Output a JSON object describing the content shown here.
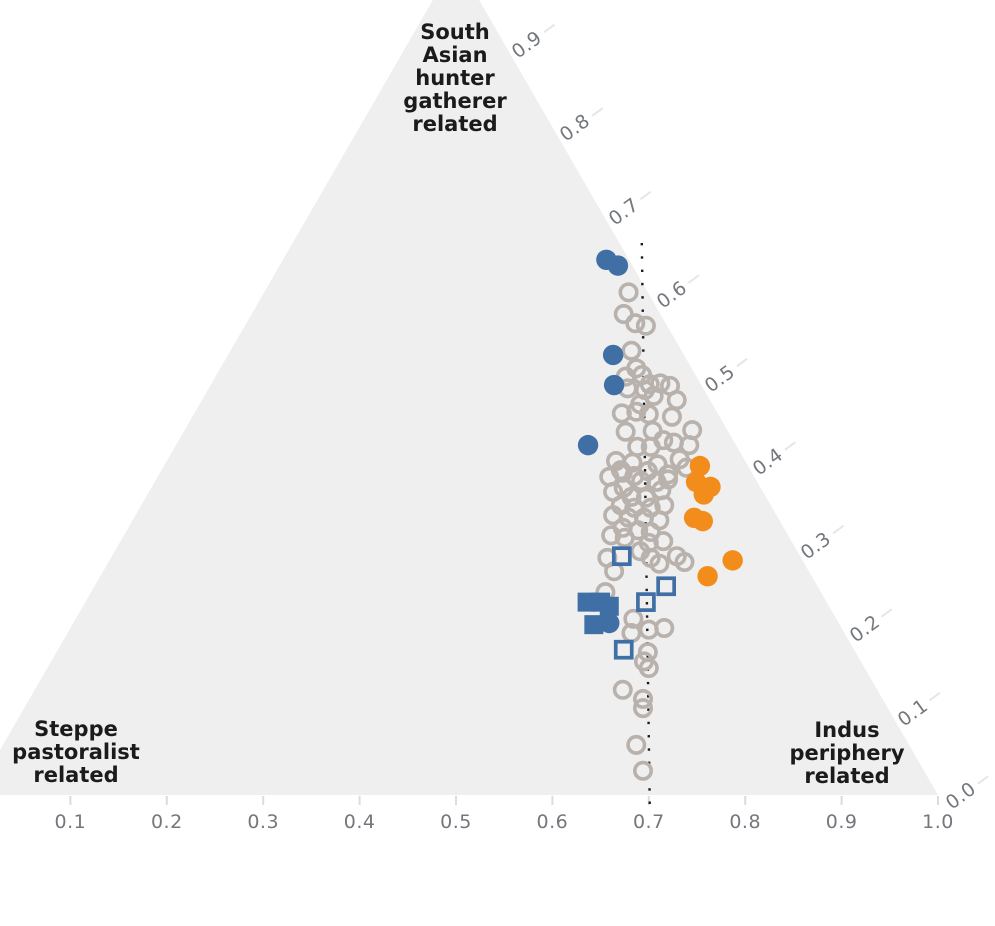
{
  "figure": {
    "background": "#ffffff",
    "triangle_fill": "#efefef",
    "corner_labels": {
      "top": "South\nAsian\nhunter\ngatherer\nrelated",
      "bottom_left": "Steppe\npastoralist\nrelated",
      "bottom_right": "Indus\nperiphery\nrelated",
      "color": "#1b1b1b"
    },
    "axis": {
      "bottom_tick_labels": [
        "0.1",
        "0.2",
        "0.3",
        "0.4",
        "0.5",
        "0.6",
        "0.7",
        "0.8",
        "0.9",
        "1.0"
      ],
      "right_tick_labels": [
        "0.9",
        "0.8",
        "0.7",
        "0.6",
        "0.5",
        "0.4",
        "0.3",
        "0.2",
        "0.1",
        "0.0"
      ],
      "tick_label_color": "#74777c",
      "tick_mark_color": "#dedcda"
    }
  },
  "chart_data": {
    "type": "scatter",
    "subtype": "ternary",
    "title": "",
    "axes": {
      "top_corner_label": "South Asian hunter gatherer related",
      "bottom_left_corner_label": "Steppe pastoralist related",
      "bottom_right_corner_label": "Indus periphery related",
      "bottom_axis_ticks": [
        0.1,
        0.2,
        0.3,
        0.4,
        0.5,
        0.6,
        0.7,
        0.8,
        0.9,
        1.0
      ],
      "right_axis_ticks": [
        0.9,
        0.8,
        0.7,
        0.6,
        0.5,
        0.4,
        0.3,
        0.2,
        0.1,
        0.0
      ],
      "grid": false,
      "legend": "none"
    },
    "reference_line": {
      "axis": "bottom",
      "value": 0.7,
      "style": "dotted",
      "color": "#1a1a1a"
    },
    "point_format": "[bottom_axis_value, right_axis_value]",
    "series": [
      {
        "name": "gray-open-circles",
        "marker": "circle-open",
        "color": "#b8b1ac",
        "points": [
          [
            0.679,
            0.602
          ],
          [
            0.674,
            0.576
          ],
          [
            0.686,
            0.565
          ],
          [
            0.697,
            0.562
          ],
          [
            0.682,
            0.532
          ],
          [
            0.687,
            0.511
          ],
          [
            0.676,
            0.501
          ],
          [
            0.693,
            0.503
          ],
          [
            0.701,
            0.492
          ],
          [
            0.712,
            0.493
          ],
          [
            0.722,
            0.49
          ],
          [
            0.678,
            0.487
          ],
          [
            0.696,
            0.485
          ],
          [
            0.705,
            0.478
          ],
          [
            0.729,
            0.473
          ],
          [
            0.691,
            0.468
          ],
          [
            0.672,
            0.457
          ],
          [
            0.687,
            0.459
          ],
          [
            0.7,
            0.456
          ],
          [
            0.724,
            0.453
          ],
          [
            0.745,
            0.437
          ],
          [
            0.676,
            0.435
          ],
          [
            0.704,
            0.436
          ],
          [
            0.715,
            0.425
          ],
          [
            0.742,
            0.419
          ],
          [
            0.688,
            0.417
          ],
          [
            0.702,
            0.417
          ],
          [
            0.726,
            0.422
          ],
          [
            0.666,
            0.4
          ],
          [
            0.683,
            0.398
          ],
          [
            0.709,
            0.396
          ],
          [
            0.732,
            0.402
          ],
          [
            0.739,
            0.392
          ],
          [
            0.671,
            0.389
          ],
          [
            0.72,
            0.384
          ],
          [
            0.659,
            0.381
          ],
          [
            0.673,
            0.386
          ],
          [
            0.685,
            0.382
          ],
          [
            0.699,
            0.388
          ],
          [
            0.692,
            0.376
          ],
          [
            0.708,
            0.375
          ],
          [
            0.72,
            0.378
          ],
          [
            0.713,
            0.365
          ],
          [
            0.674,
            0.368
          ],
          [
            0.663,
            0.363
          ],
          [
            0.682,
            0.357
          ],
          [
            0.697,
            0.356
          ],
          [
            0.671,
            0.347
          ],
          [
            0.685,
            0.344
          ],
          [
            0.702,
            0.344
          ],
          [
            0.716,
            0.347
          ],
          [
            0.663,
            0.335
          ],
          [
            0.679,
            0.332
          ],
          [
            0.695,
            0.332
          ],
          [
            0.711,
            0.329
          ],
          [
            0.673,
            0.32
          ],
          [
            0.689,
            0.317
          ],
          [
            0.702,
            0.315
          ],
          [
            0.661,
            0.311
          ],
          [
            0.675,
            0.308
          ],
          [
            0.7,
            0.302
          ],
          [
            0.715,
            0.304
          ],
          [
            0.691,
            0.292
          ],
          [
            0.702,
            0.284
          ],
          [
            0.729,
            0.286
          ],
          [
            0.737,
            0.279
          ],
          [
            0.711,
            0.277
          ],
          [
            0.657,
            0.284
          ],
          [
            0.664,
            0.268
          ],
          [
            0.655,
            0.243
          ],
          [
            0.684,
            0.211
          ],
          [
            0.7,
            0.198
          ],
          [
            0.716,
            0.2
          ],
          [
            0.682,
            0.194
          ],
          [
            0.699,
            0.171
          ],
          [
            0.695,
            0.16
          ],
          [
            0.7,
            0.152
          ],
          [
            0.673,
            0.126
          ],
          [
            0.694,
            0.115
          ],
          [
            0.694,
            0.104
          ],
          [
            0.687,
            0.06
          ],
          [
            0.694,
            0.029
          ]
        ]
      },
      {
        "name": "blue-filled-circles",
        "marker": "circle",
        "color": "#3f6fa5",
        "points": [
          [
            0.656,
            0.641
          ],
          [
            0.668,
            0.634
          ],
          [
            0.663,
            0.527
          ],
          [
            0.664,
            0.491
          ],
          [
            0.637,
            0.419
          ],
          [
            0.659,
            0.206
          ]
        ]
      },
      {
        "name": "orange-filled-circles",
        "marker": "circle",
        "color": "#f28d1c",
        "points": [
          [
            0.753,
            0.394
          ],
          [
            0.749,
            0.375
          ],
          [
            0.764,
            0.369
          ],
          [
            0.757,
            0.36
          ],
          [
            0.747,
            0.332
          ],
          [
            0.756,
            0.328
          ],
          [
            0.787,
            0.281
          ],
          [
            0.761,
            0.262
          ]
        ]
      },
      {
        "name": "blue-filled-squares",
        "marker": "square",
        "color": "#3f6fa5",
        "points": [
          [
            0.636,
            0.231
          ],
          [
            0.65,
            0.231
          ],
          [
            0.659,
            0.226
          ],
          [
            0.643,
            0.204
          ]
        ]
      },
      {
        "name": "blue-open-squares",
        "marker": "square-open",
        "color": "#3f6fa5",
        "points": [
          [
            0.672,
            0.286
          ],
          [
            0.718,
            0.25
          ],
          [
            0.697,
            0.231
          ],
          [
            0.674,
            0.174
          ]
        ]
      }
    ]
  }
}
